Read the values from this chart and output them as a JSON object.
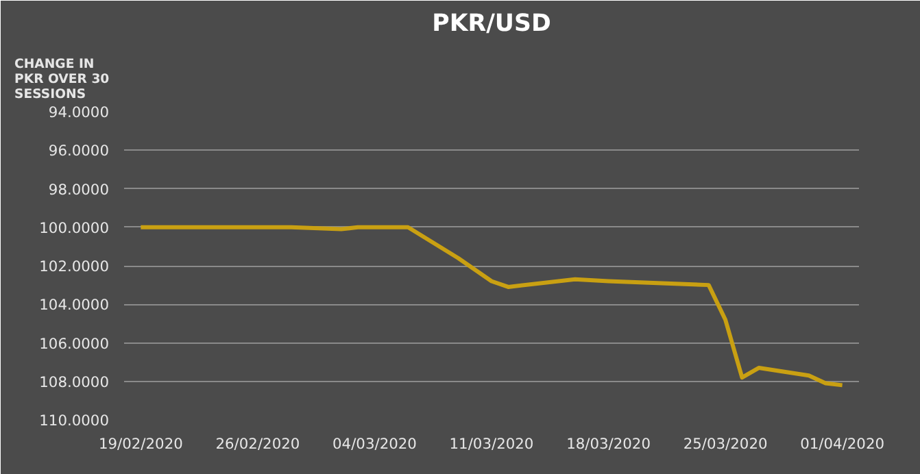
{
  "chart_data": {
    "type": "line",
    "title": "PKR/USD",
    "ylabel": "CHANGE IN PKR OVER 30 SESSIONS",
    "x": [
      "2020-02-19",
      "2020-02-24",
      "2020-02-28",
      "2020-03-02",
      "2020-03-03",
      "2020-03-06",
      "2020-03-09",
      "2020-03-11",
      "2020-03-12",
      "2020-03-16",
      "2020-03-18",
      "2020-03-24",
      "2020-03-25",
      "2020-03-26",
      "2020-03-27",
      "2020-03-30",
      "2020-03-31",
      "2020-04-01"
    ],
    "series": [
      {
        "color": "#c9a012",
        "values": [
          100.0,
          100.0,
          100.0,
          100.1,
          100.0,
          100.0,
          101.6,
          102.8,
          103.1,
          102.7,
          102.8,
          103.0,
          104.8,
          107.8,
          107.3,
          107.7,
          108.1,
          108.2
        ]
      }
    ],
    "xlim": [
      "2020-02-18",
      "2020-04-02"
    ],
    "xticks": [
      {
        "value": "2020-02-19",
        "label": "19/02/2020"
      },
      {
        "value": "2020-02-26",
        "label": "26/02/2020"
      },
      {
        "value": "2020-03-04",
        "label": "04/03/2020"
      },
      {
        "value": "2020-03-11",
        "label": "11/03/2020"
      },
      {
        "value": "2020-03-18",
        "label": "18/03/2020"
      },
      {
        "value": "2020-03-25",
        "label": "25/03/2020"
      },
      {
        "value": "2020-04-01",
        "label": "01/04/2020"
      }
    ],
    "ylim": [
      110,
      94
    ],
    "yticks": [
      {
        "value": 94,
        "label": "94.0000"
      },
      {
        "value": 96,
        "label": "96.0000"
      },
      {
        "value": 98,
        "label": "98.0000"
      },
      {
        "value": 100,
        "label": "100.0000"
      },
      {
        "value": 102,
        "label": "102.0000"
      },
      {
        "value": 104,
        "label": "104.0000"
      },
      {
        "value": 106,
        "label": "106.0000"
      },
      {
        "value": 108,
        "label": "108.0000"
      },
      {
        "value": 110,
        "label": "110.0000"
      }
    ],
    "grid": "y",
    "marker": "none",
    "line_style": "solid"
  }
}
